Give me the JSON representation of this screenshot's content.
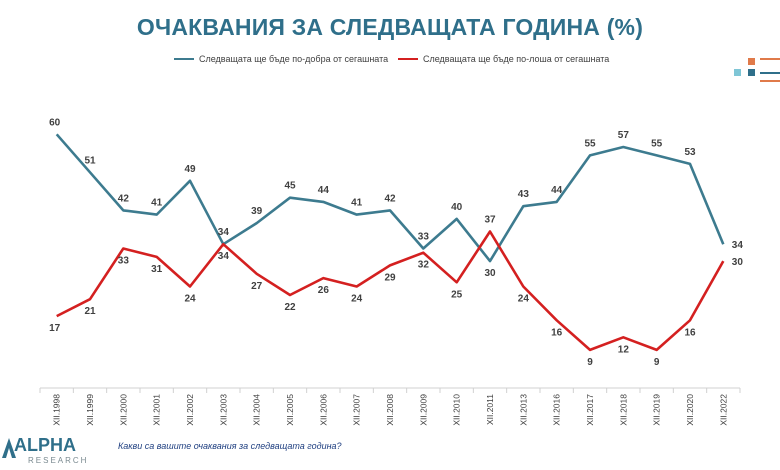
{
  "chart_data": {
    "type": "line",
    "title": "ОЧАКВАНИЯ ЗА СЛЕДВАЩАТА ГОДИНА (%)",
    "categories": [
      "XII.1998",
      "XII.1999",
      "XII.2000",
      "XII.2001",
      "XII.2002",
      "XII.2003",
      "XII.2004",
      "XII.2005",
      "XII.2006",
      "XII.2007",
      "XII.2008",
      "XII.2009",
      "XII.2010",
      "XII.2011",
      "XII.2013",
      "XII.2016",
      "XII.2017",
      "XII.2018",
      "XII.2019",
      "XII.2020",
      "XII.2022"
    ],
    "series": [
      {
        "name": "Следващата ще бъде по-добра от сегашната",
        "color": "#3d7b8f",
        "values": [
          60,
          51,
          42,
          41,
          49,
          34,
          39,
          45,
          44,
          41,
          42,
          33,
          40,
          30,
          43,
          44,
          55,
          57,
          55,
          53,
          34
        ]
      },
      {
        "name": "Следващата ще бъде по-лоша от сегашната",
        "color": "#d42020",
        "values": [
          17,
          21,
          33,
          31,
          24,
          34,
          27,
          22,
          26,
          24,
          29,
          32,
          25,
          37,
          24,
          16,
          9,
          12,
          9,
          16,
          30
        ]
      }
    ],
    "ylim": [
      0,
      70
    ],
    "grid": false,
    "legend": "top"
  },
  "footer": {
    "question": "Какви са вашите очаквания за следващата година?",
    "logo_name": "ALPHA",
    "logo_sub": "RESEARCH"
  }
}
